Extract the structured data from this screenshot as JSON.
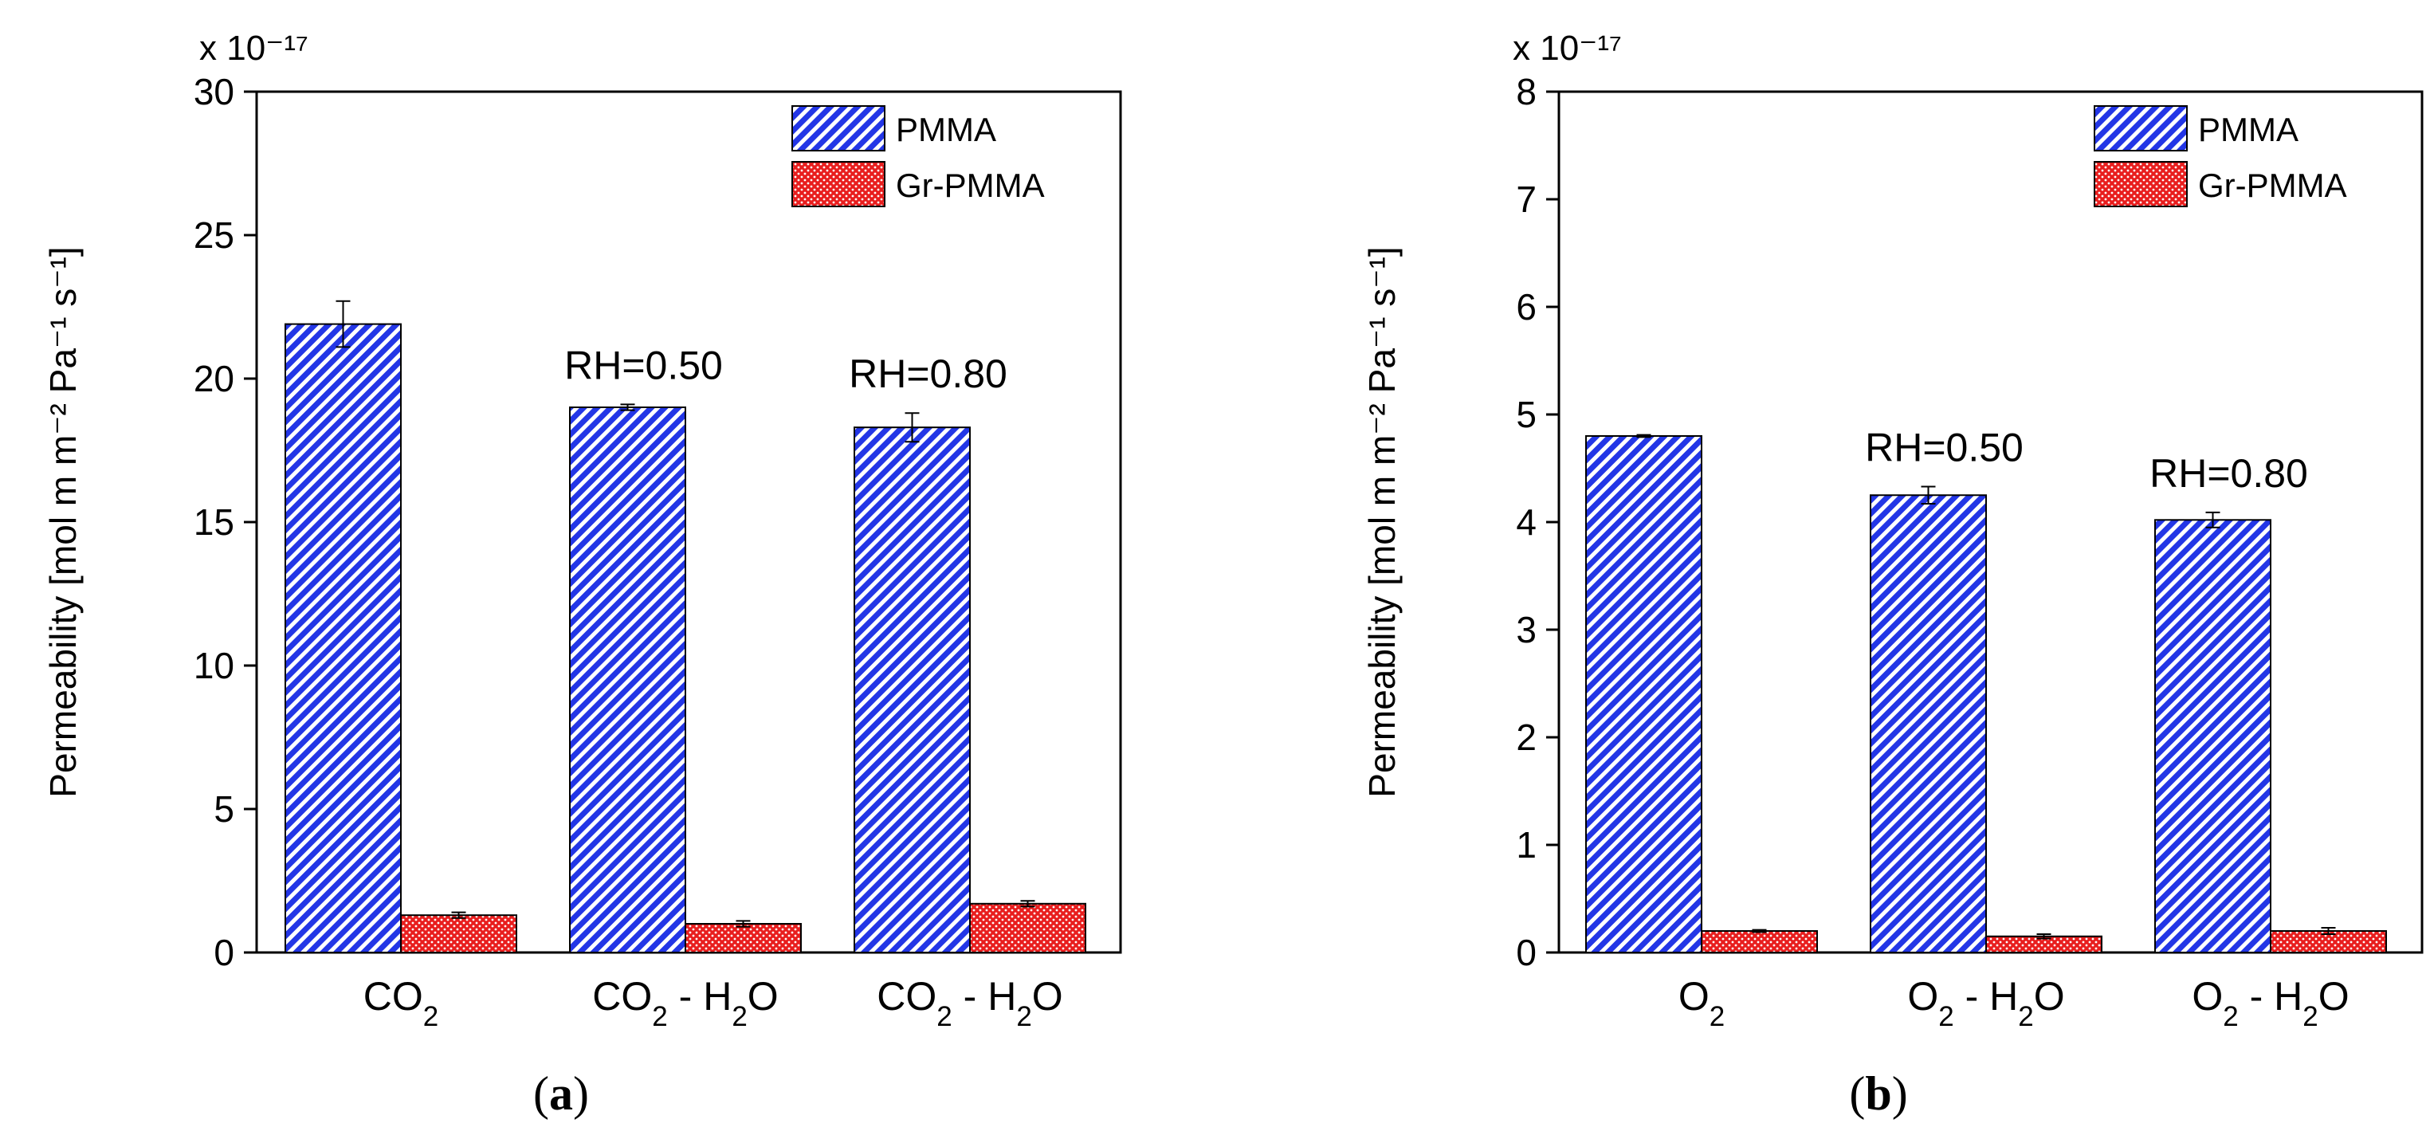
{
  "colors": {
    "pmma_stripe": "#2336e6",
    "gr_pmma_fill": "#e81e1e",
    "axis": "#000000",
    "background": "#ffffff"
  },
  "chart_data": [
    {
      "type": "bar",
      "panel_label": "a",
      "title": "",
      "ylabel": "Permeability [mol m m⁻² Pa⁻¹ s⁻¹]",
      "xlabel": "",
      "y_exponent_label": "x 10⁻¹⁷",
      "ylim": [
        0,
        30
      ],
      "yticks": [
        0,
        5,
        10,
        15,
        20,
        25,
        30
      ],
      "categories": [
        "CO₂",
        "CO₂ - H₂O",
        "CO₂ - H₂O"
      ],
      "annotations": [
        "",
        "RH=0.50",
        "RH=0.80"
      ],
      "legend_position": "top-right",
      "series": [
        {
          "name": "PMMA",
          "values": [
            21.9,
            19.0,
            18.3
          ],
          "errors": [
            0.8,
            0.1,
            0.5
          ]
        },
        {
          "name": "Gr-PMMA",
          "values": [
            1.3,
            1.0,
            1.7
          ],
          "errors": [
            0.1,
            0.1,
            0.1
          ]
        }
      ]
    },
    {
      "type": "bar",
      "panel_label": "b",
      "title": "",
      "ylabel": "Permeability [mol m m⁻² Pa⁻¹ s⁻¹]",
      "xlabel": "",
      "y_exponent_label": "x 10⁻¹⁷",
      "ylim": [
        0,
        8
      ],
      "yticks": [
        0,
        1,
        2,
        3,
        4,
        5,
        6,
        7,
        8
      ],
      "categories": [
        "O₂",
        "O₂ - H₂O",
        "O₂ - H₂O"
      ],
      "annotations": [
        "",
        "RH=0.50",
        "RH=0.80"
      ],
      "legend_position": "top-right",
      "series": [
        {
          "name": "PMMA",
          "values": [
            4.8,
            4.25,
            4.02
          ],
          "errors": [
            0.01,
            0.08,
            0.07
          ]
        },
        {
          "name": "Gr-PMMA",
          "values": [
            0.2,
            0.15,
            0.2
          ],
          "errors": [
            0.01,
            0.02,
            0.03
          ]
        }
      ]
    }
  ]
}
